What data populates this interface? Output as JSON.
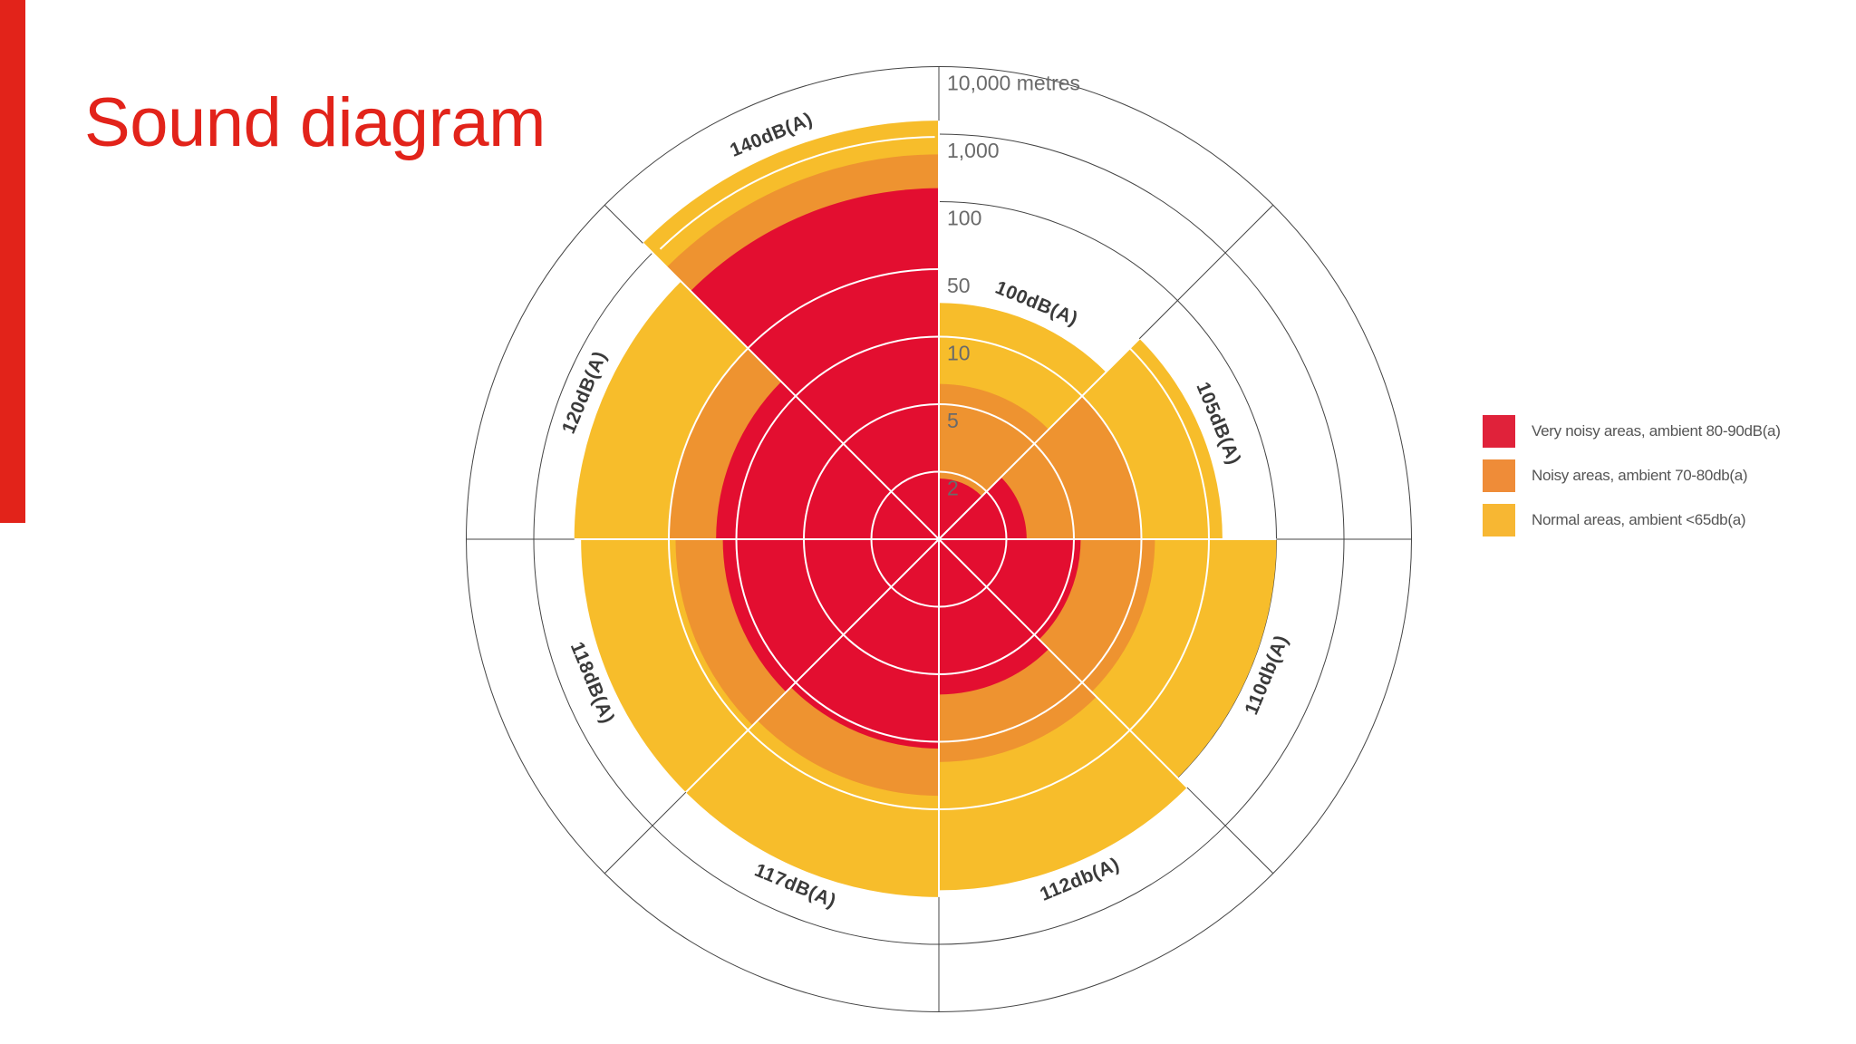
{
  "page": {
    "title": "Sound diagram"
  },
  "colors": {
    "accent": "#e2231a",
    "very_noisy": "#e30e30",
    "noisy": "#ee9330",
    "normal": "#f7bd2b",
    "grid": "#444444",
    "inner_grid": "#ffffff",
    "legend_very_noisy": "#e0223a",
    "legend_noisy": "#ef8c38",
    "legend_normal": "#f7b733"
  },
  "legend": {
    "items": [
      {
        "label": "Very noisy areas, ambient 80-90dB(a)",
        "color": "#e0223a"
      },
      {
        "label": "Noisy areas, ambient 70-80db(a)",
        "color": "#ef8c38"
      },
      {
        "label": "Normal areas, ambient <65db(a)",
        "color": "#f7b733"
      }
    ]
  },
  "chart_data": {
    "type": "polar-area",
    "title": "Sound diagram",
    "radial_axis": {
      "scale": "ordinal rings (distance in metres)",
      "ticks": [
        "2",
        "5",
        "10",
        "50",
        "100",
        "1,000",
        "10,000 metres"
      ]
    },
    "sectors": [
      {
        "label": "100dB(A)",
        "very_noisy": 0.9,
        "noisy": 2.3,
        "normal": 3.5
      },
      {
        "label": "105dB(A)",
        "very_noisy": 1.3,
        "noisy": 3.0,
        "normal": 4.2
      },
      {
        "label": "110db(A)",
        "very_noisy": 2.1,
        "noisy": 3.2,
        "normal": 5.0
      },
      {
        "label": "112db(A)",
        "very_noisy": 2.3,
        "noisy": 3.3,
        "normal": 5.2
      },
      {
        "label": "117dB(A)",
        "very_noisy": 3.1,
        "noisy": 3.8,
        "normal": 5.3
      },
      {
        "label": "118dB(A)",
        "very_noisy": 3.2,
        "noisy": 3.9,
        "normal": 5.3
      },
      {
        "label": "120dB(A)",
        "very_noisy": 3.3,
        "noisy": 4.0,
        "normal": 5.4
      },
      {
        "label": "140dB(A)",
        "very_noisy": 5.2,
        "noisy": 5.7,
        "normal": 6.2
      }
    ]
  }
}
